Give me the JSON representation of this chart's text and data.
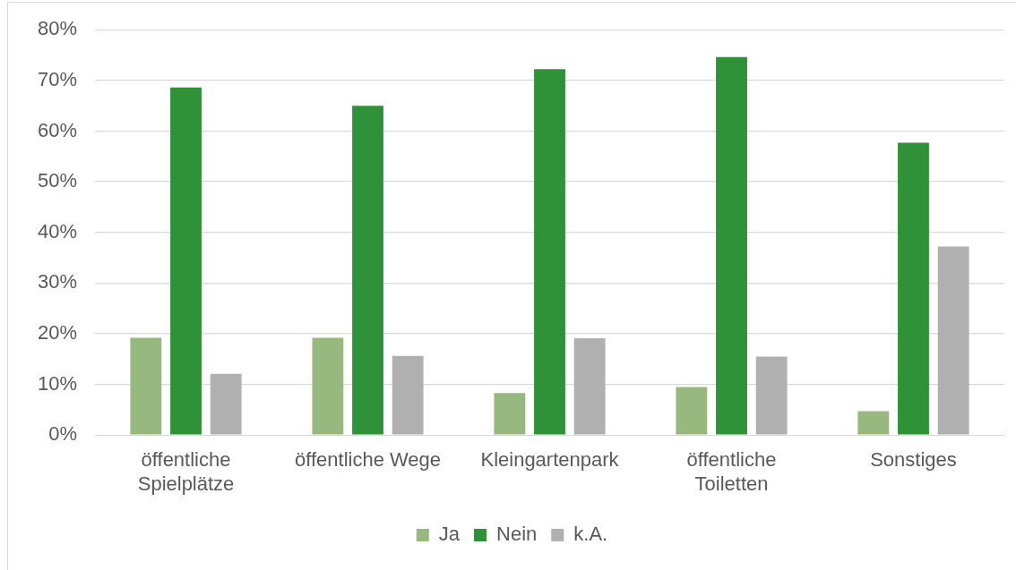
{
  "chart_data": {
    "type": "bar",
    "categories": [
      "öffentliche Spielplätze",
      "öffentliche Wege",
      "Kleingartenpark",
      "öffentliche Toiletten",
      "Sonstiges"
    ],
    "series": [
      {
        "name": "Ja",
        "color": "#97b97f",
        "values": [
          19.2,
          19.2,
          8.3,
          9.5,
          4.7
        ]
      },
      {
        "name": "Nein",
        "color": "#2f9138",
        "values": [
          68.6,
          65.0,
          72.2,
          74.6,
          57.7
        ]
      },
      {
        "name": "k.A.",
        "color": "#b0b0b0",
        "values": [
          12.1,
          15.6,
          19.1,
          15.5,
          37.2
        ]
      }
    ],
    "ylim": [
      0,
      80
    ],
    "yticks": [
      {
        "value": 0,
        "label": "0%"
      },
      {
        "value": 10,
        "label": "10%"
      },
      {
        "value": 20,
        "label": "20%"
      },
      {
        "value": 30,
        "label": "30%"
      },
      {
        "value": 40,
        "label": "40%"
      },
      {
        "value": 50,
        "label": "50%"
      },
      {
        "value": 60,
        "label": "60%"
      },
      {
        "value": 70,
        "label": "70%"
      },
      {
        "value": 80,
        "label": "80%"
      }
    ],
    "grid": "y",
    "legend": "bottom"
  }
}
